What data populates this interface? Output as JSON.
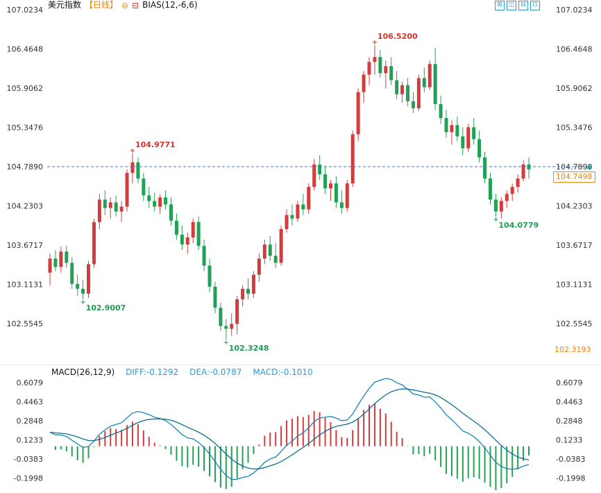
{
  "header": {
    "title": "美元指数",
    "period": "【日线】",
    "collapse_icon": "⊖",
    "indicator_icon": "⊟",
    "indicator": "BIAS(12,-6,6)",
    "toolbar_icons": [
      "⊞",
      "◫",
      "⊟",
      "⊡"
    ]
  },
  "macd_panel": {
    "label": "MACD(26,12,9)",
    "diff_label": "DIFF:-0.1292",
    "dea_label": "DEA:-0.0787",
    "macd_label": "MACD:-0.1010"
  },
  "price_markers": {
    "reference_price": "104.7890",
    "last_price": "104.7498",
    "low_axis_value": "102.3193"
  },
  "chart_data": {
    "type": "candlestick",
    "title": "美元指数 日线 (USD Index daily) with MACD(26,12,9) sub-chart",
    "price_axis_ticks": [
      "107.0234",
      "106.4648",
      "105.9062",
      "105.3476",
      "104.7890",
      "104.2303",
      "103.6717",
      "103.1131",
      "102.5545"
    ],
    "macd_axis_ticks": [
      "0.6079",
      "0.4463",
      "0.2848",
      "0.1233",
      "-0.0383",
      "-0.1998"
    ],
    "reference_line": {
      "price": 104.789,
      "label": "104.7890"
    },
    "last_close": 104.7498,
    "annotations": [
      {
        "index": 15,
        "price": 104.9771,
        "text": "104.9771",
        "type": "high"
      },
      {
        "index": 59,
        "price": 106.52,
        "text": "106.5200",
        "type": "high"
      },
      {
        "index": 6,
        "price": 102.9007,
        "text": "102.9007",
        "type": "low"
      },
      {
        "index": 32,
        "price": 102.3248,
        "text": "102.3248",
        "type": "low"
      },
      {
        "index": 81,
        "price": 104.0779,
        "text": "104.0779",
        "type": "low"
      }
    ],
    "macd_values": {
      "diff": -0.1292,
      "dea": -0.0787,
      "macd": -0.101
    },
    "candles": [
      [
        103.28,
        103.55,
        103.1,
        103.48
      ],
      [
        103.48,
        103.6,
        103.3,
        103.36
      ],
      [
        103.36,
        103.65,
        103.28,
        103.58
      ],
      [
        103.58,
        103.66,
        103.35,
        103.42
      ],
      [
        103.42,
        103.5,
        103.05,
        103.12
      ],
      [
        103.12,
        103.25,
        102.95,
        103.05
      ],
      [
        103.05,
        103.18,
        102.9007,
        102.98
      ],
      [
        102.98,
        103.45,
        102.92,
        103.4
      ],
      [
        103.4,
        104.05,
        103.35,
        104.0
      ],
      [
        104.0,
        104.4,
        103.9,
        104.32
      ],
      [
        104.32,
        104.45,
        104.1,
        104.2
      ],
      [
        104.2,
        104.35,
        104.05,
        104.28
      ],
      [
        104.28,
        104.38,
        104.08,
        104.15
      ],
      [
        104.15,
        104.3,
        104.0,
        104.22
      ],
      [
        104.22,
        104.75,
        104.15,
        104.7
      ],
      [
        104.7,
        104.9771,
        104.55,
        104.85
      ],
      [
        104.85,
        104.92,
        104.55,
        104.62
      ],
      [
        104.62,
        104.7,
        104.3,
        104.38
      ],
      [
        104.38,
        104.5,
        104.2,
        104.3
      ],
      [
        104.3,
        104.42,
        104.15,
        104.22
      ],
      [
        104.22,
        104.4,
        104.12,
        104.35
      ],
      [
        104.35,
        104.45,
        104.18,
        104.25
      ],
      [
        104.25,
        104.35,
        103.95,
        104.02
      ],
      [
        104.02,
        104.12,
        103.75,
        103.82
      ],
      [
        103.82,
        103.95,
        103.6,
        103.68
      ],
      [
        103.68,
        103.85,
        103.55,
        103.78
      ],
      [
        103.78,
        104.05,
        103.7,
        104.0
      ],
      [
        104.0,
        104.08,
        103.6,
        103.66
      ],
      [
        103.66,
        103.75,
        103.3,
        103.38
      ],
      [
        103.38,
        103.48,
        103.0,
        103.08
      ],
      [
        103.08,
        103.15,
        102.7,
        102.78
      ],
      [
        102.78,
        102.85,
        102.45,
        102.52
      ],
      [
        102.52,
        102.62,
        102.3248,
        102.48
      ],
      [
        102.48,
        102.7,
        102.38,
        102.55
      ],
      [
        102.55,
        102.95,
        102.4,
        102.9
      ],
      [
        102.9,
        103.1,
        102.8,
        103.05
      ],
      [
        103.05,
        103.2,
        102.9,
        102.98
      ],
      [
        102.98,
        103.3,
        102.92,
        103.25
      ],
      [
        103.25,
        103.55,
        103.15,
        103.48
      ],
      [
        103.48,
        103.75,
        103.4,
        103.68
      ],
      [
        103.68,
        103.8,
        103.45,
        103.52
      ],
      [
        103.52,
        103.7,
        103.35,
        103.42
      ],
      [
        103.42,
        103.95,
        103.38,
        103.9
      ],
      [
        103.9,
        104.18,
        103.85,
        104.1
      ],
      [
        104.1,
        104.25,
        103.95,
        104.05
      ],
      [
        104.05,
        104.3,
        104.0,
        104.25
      ],
      [
        104.25,
        104.4,
        104.1,
        104.18
      ],
      [
        104.18,
        104.55,
        104.12,
        104.5
      ],
      [
        104.5,
        104.9,
        104.45,
        104.82
      ],
      [
        104.82,
        104.95,
        104.6,
        104.68
      ],
      [
        104.68,
        104.8,
        104.4,
        104.48
      ],
      [
        104.48,
        104.6,
        104.3,
        104.55
      ],
      [
        104.55,
        104.65,
        104.2,
        104.28
      ],
      [
        104.28,
        104.45,
        104.12,
        104.2
      ],
      [
        104.2,
        104.6,
        104.15,
        104.55
      ],
      [
        104.55,
        105.3,
        104.5,
        105.25
      ],
      [
        105.25,
        105.9,
        105.15,
        105.85
      ],
      [
        105.85,
        106.15,
        105.7,
        106.1
      ],
      [
        106.1,
        106.35,
        105.95,
        106.28
      ],
      [
        106.28,
        106.52,
        106.1,
        106.35
      ],
      [
        106.35,
        106.45,
        106.05,
        106.12
      ],
      [
        106.12,
        106.3,
        105.9,
        106.22
      ],
      [
        106.22,
        106.35,
        105.95,
        106.02
      ],
      [
        106.02,
        106.15,
        105.75,
        105.82
      ],
      [
        105.82,
        106.0,
        105.7,
        105.95
      ],
      [
        105.95,
        106.05,
        105.65,
        105.72
      ],
      [
        105.72,
        105.85,
        105.55,
        105.62
      ],
      [
        105.62,
        106.1,
        105.58,
        106.05
      ],
      [
        106.05,
        106.2,
        105.85,
        105.92
      ],
      [
        105.92,
        106.3,
        105.88,
        106.25
      ],
      [
        106.25,
        106.48,
        105.6,
        105.68
      ],
      [
        105.68,
        105.8,
        105.4,
        105.48
      ],
      [
        105.48,
        105.6,
        105.2,
        105.28
      ],
      [
        105.28,
        105.45,
        105.1,
        105.38
      ],
      [
        105.38,
        105.5,
        105.15,
        105.22
      ],
      [
        105.22,
        105.35,
        104.95,
        105.05
      ],
      [
        105.05,
        105.4,
        105.0,
        105.35
      ],
      [
        105.35,
        105.48,
        105.1,
        105.18
      ],
      [
        105.18,
        105.3,
        104.85,
        104.92
      ],
      [
        104.92,
        105.0,
        104.55,
        104.62
      ],
      [
        104.62,
        104.7,
        104.25,
        104.32
      ],
      [
        104.32,
        104.4,
        104.0779,
        104.15
      ],
      [
        104.15,
        104.35,
        104.05,
        104.3
      ],
      [
        104.3,
        104.45,
        104.2,
        104.4
      ],
      [
        104.4,
        104.55,
        104.3,
        104.5
      ],
      [
        104.5,
        104.68,
        104.42,
        104.62
      ],
      [
        104.62,
        104.88,
        104.58,
        104.82
      ],
      [
        104.82,
        104.92,
        104.62,
        104.7498
      ]
    ],
    "colors": {
      "up": "#d23c3c",
      "down": "#22a055",
      "ref_line": "#3f74c8",
      "triangle": "#27a39b",
      "ann_high": "#d63226",
      "ann_low": "#1f9d55",
      "diff_line": "#1785b5",
      "dea_line": "#0c6e8e",
      "axis_text": "#333333",
      "accent_orange": "#f08300"
    }
  }
}
